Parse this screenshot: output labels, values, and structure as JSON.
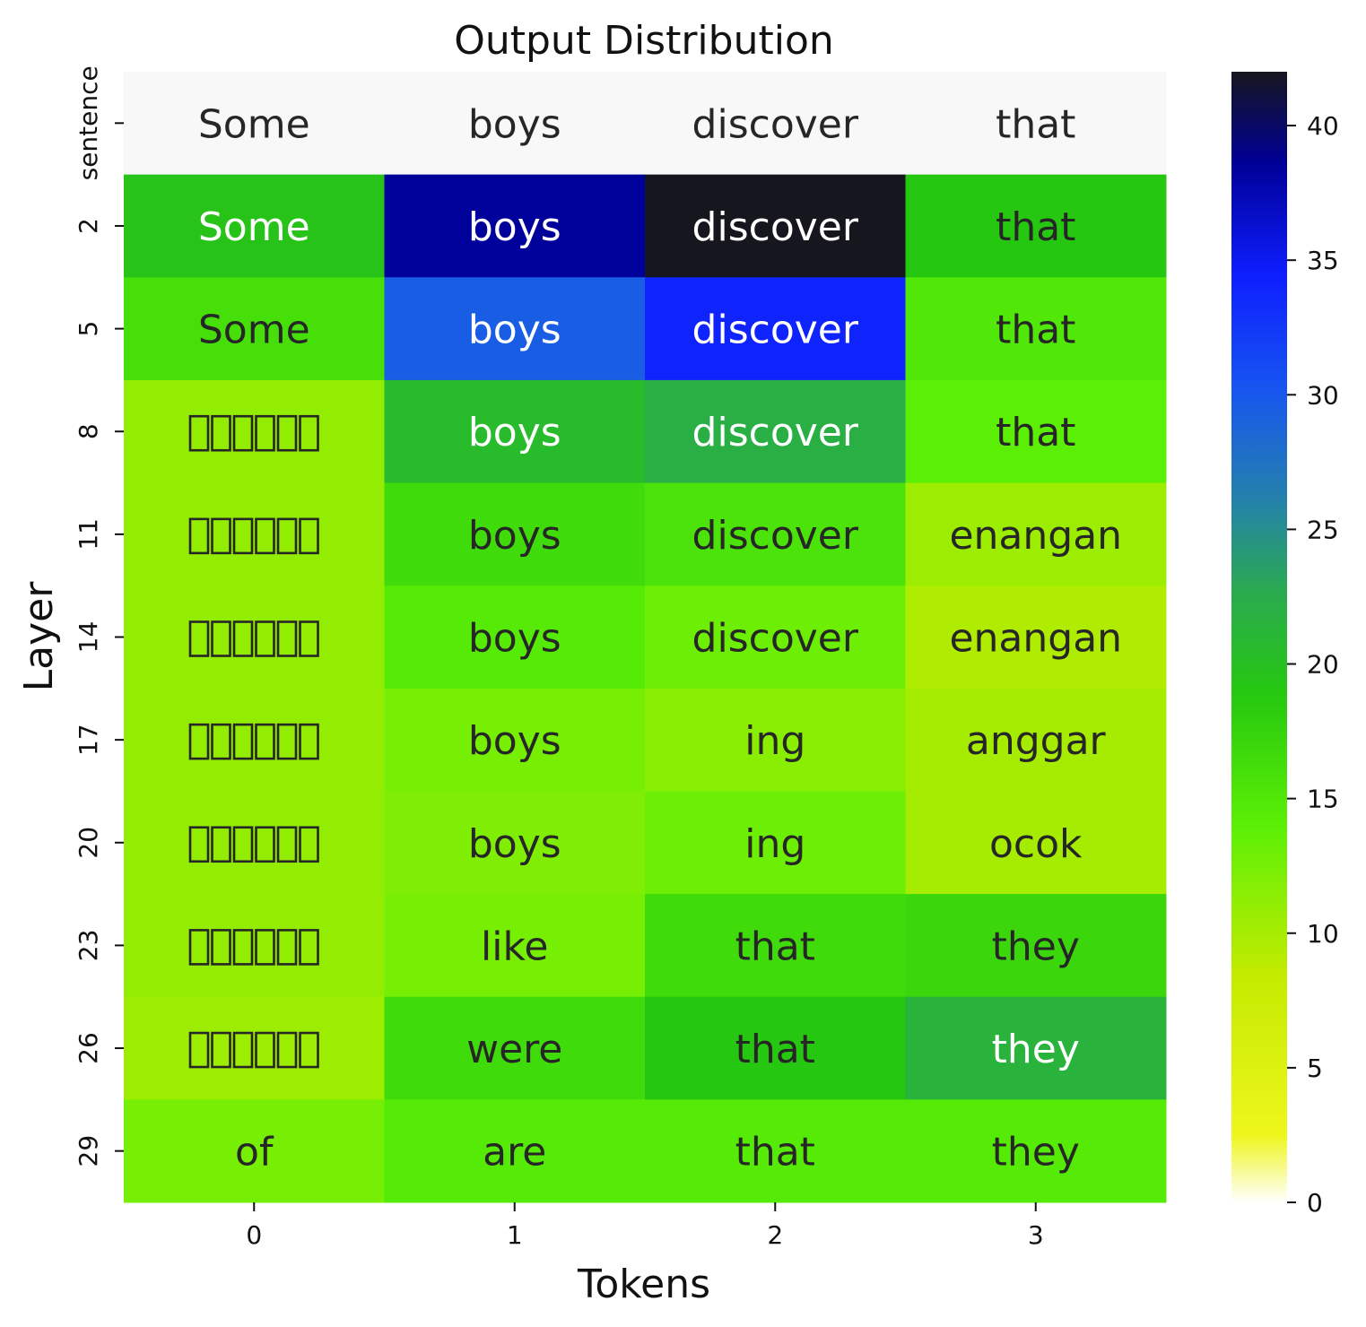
{
  "chart_data": {
    "type": "heatmap",
    "title": "Output Distribution",
    "xlabel": "Tokens",
    "ylabel": "Layer",
    "x_ticks": [
      "0",
      "1",
      "2",
      "3"
    ],
    "y_ticks": [
      "sentence",
      "2",
      "5",
      "8",
      "11",
      "14",
      "17",
      "20",
      "23",
      "26",
      "29"
    ],
    "colorbar": {
      "range": [
        0,
        42
      ],
      "ticks": [
        "0",
        "5",
        "10",
        "15",
        "20",
        "25",
        "30",
        "35",
        "40"
      ]
    },
    "sentence_row": [
      "Some",
      "boys",
      "discover",
      "that"
    ],
    "rows": [
      {
        "layer": "2",
        "tokens": [
          "Some",
          "boys",
          "discover",
          "that"
        ],
        "values": [
          19.5,
          38.5,
          42.0,
          19.0
        ]
      },
      {
        "layer": "5",
        "tokens": [
          "Some",
          "boys",
          "discover",
          "that"
        ],
        "values": [
          16.0,
          29.5,
          34.0,
          15.0
        ]
      },
      {
        "layer": "8",
        "tokens": [
          "\u0000\u0000\u0000\u0000\u0000\u0000",
          "boys",
          "discover",
          "that"
        ],
        "values": [
          11.0,
          20.5,
          22.0,
          14.0
        ]
      },
      {
        "layer": "11",
        "tokens": [
          "\u0000\u0000\u0000\u0000\u0000\u0000",
          "boys",
          "discover",
          "enangan"
        ],
        "values": [
          11.0,
          16.5,
          15.5,
          10.5
        ]
      },
      {
        "layer": "14",
        "tokens": [
          "\u0000\u0000\u0000\u0000\u0000\u0000",
          "boys",
          "discover",
          "enangan"
        ],
        "values": [
          11.0,
          14.5,
          13.0,
          9.5
        ]
      },
      {
        "layer": "17",
        "tokens": [
          "\u0000\u0000\u0000\u0000\u0000\u0000",
          "boys",
          "ing",
          "anggar"
        ],
        "values": [
          11.0,
          12.5,
          11.5,
          10.0
        ]
      },
      {
        "layer": "20",
        "tokens": [
          "\u0000\u0000\u0000\u0000\u0000\u0000",
          "boys",
          "ing",
          "ocok"
        ],
        "values": [
          11.0,
          12.0,
          13.0,
          10.0
        ]
      },
      {
        "layer": "23",
        "tokens": [
          "\u0000\u0000\u0000\u0000\u0000\u0000",
          "like",
          "that",
          "they"
        ],
        "values": [
          11.0,
          12.5,
          16.5,
          17.0
        ]
      },
      {
        "layer": "26",
        "tokens": [
          "\u0000\u0000\u0000\u0000\u0000\u0000",
          "were",
          "that",
          "they"
        ],
        "values": [
          10.5,
          16.5,
          19.0,
          21.5
        ]
      },
      {
        "layer": "29",
        "tokens": [
          "of",
          "are",
          "that",
          "they"
        ],
        "values": [
          12.5,
          14.5,
          14.5,
          14.5
        ]
      }
    ]
  }
}
